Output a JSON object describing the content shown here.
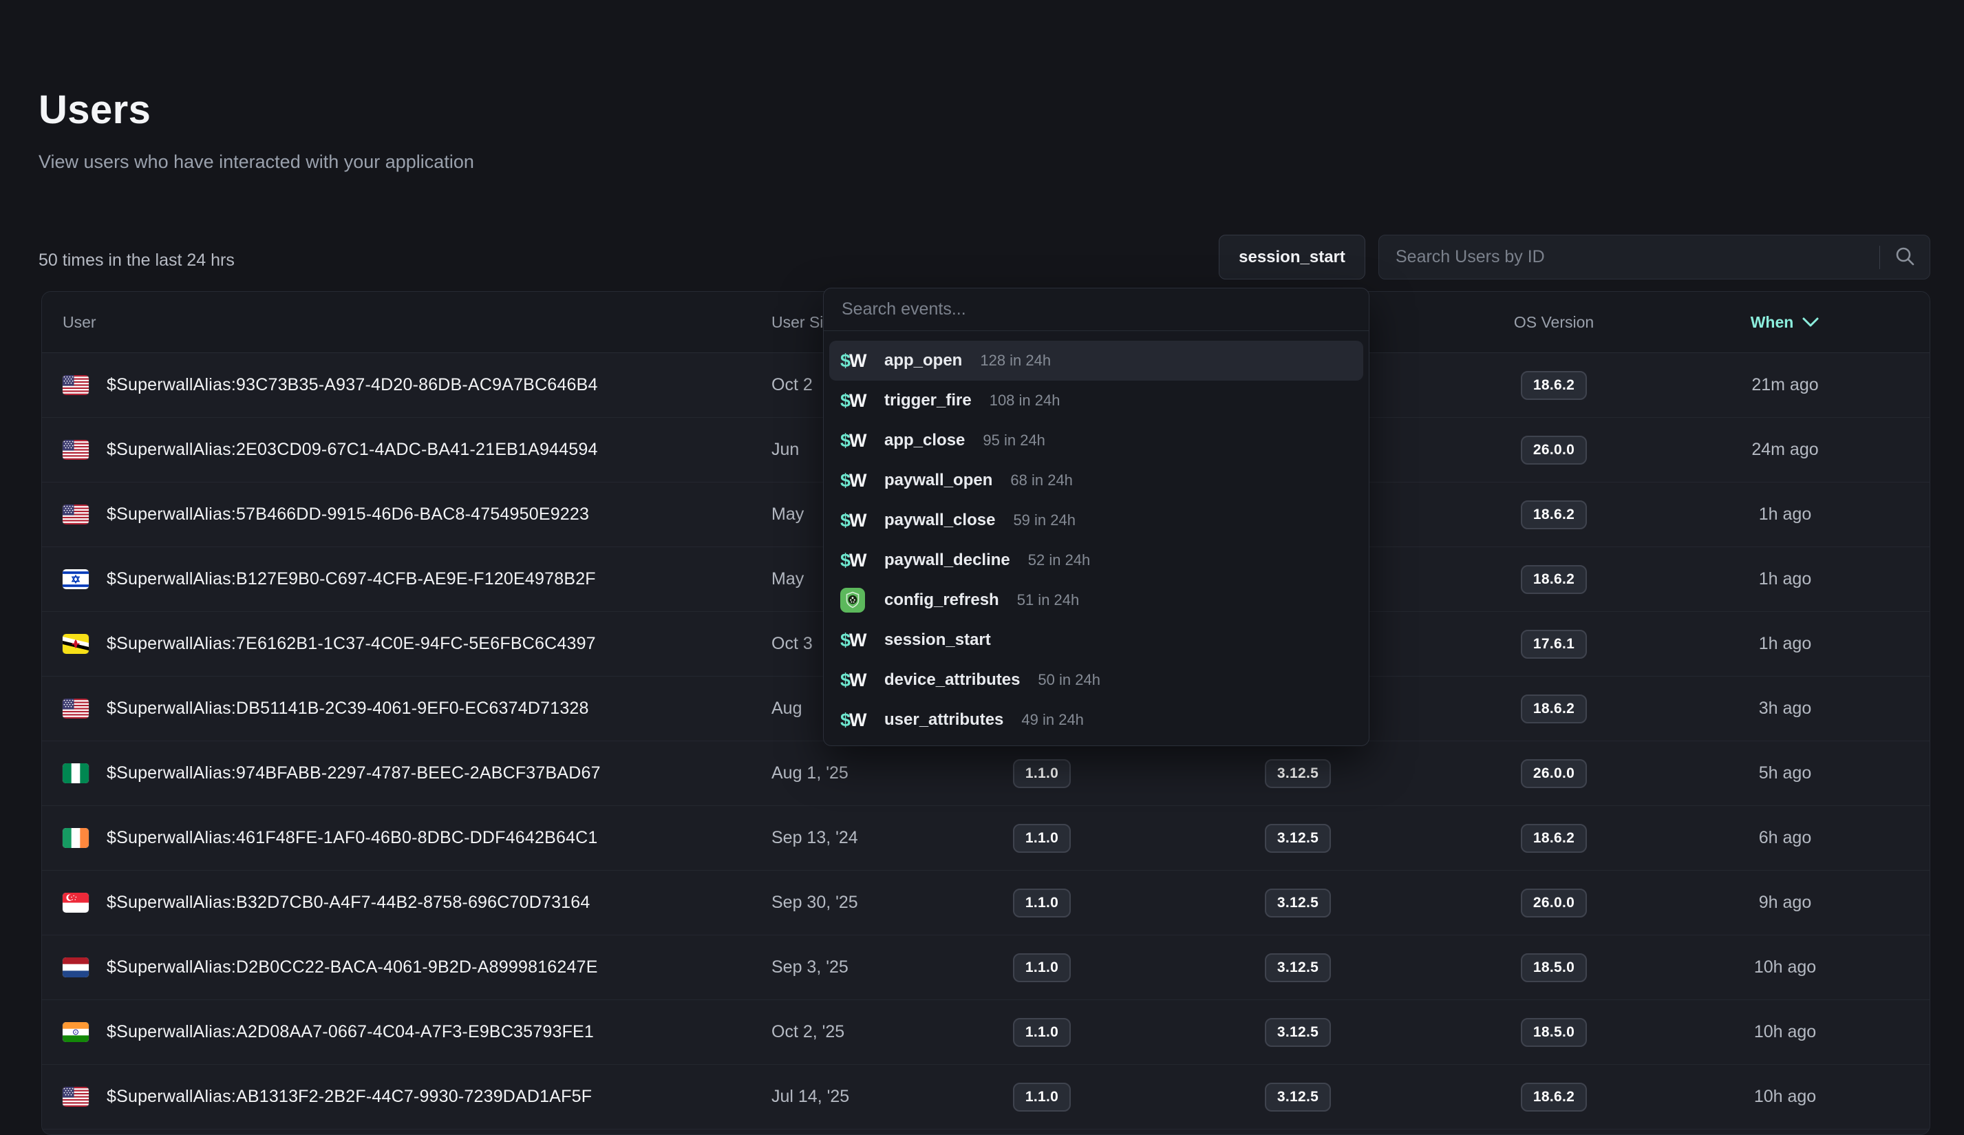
{
  "page": {
    "title": "Users",
    "subtitle": "View users who have interacted with your application",
    "stats_text": "50 times in the last 24 hrs"
  },
  "controls": {
    "event_filter_label": "session_start",
    "user_search_placeholder": "Search Users by ID"
  },
  "events_dropdown": {
    "search_placeholder": "Search events...",
    "items": [
      {
        "icon": "superwall",
        "label": "app_open",
        "count": "128 in 24h",
        "highlighted": true
      },
      {
        "icon": "superwall",
        "label": "trigger_fire",
        "count": "108 in 24h",
        "highlighted": false
      },
      {
        "icon": "superwall",
        "label": "app_close",
        "count": "95 in 24h",
        "highlighted": false
      },
      {
        "icon": "superwall",
        "label": "paywall_open",
        "count": "68 in 24h",
        "highlighted": false
      },
      {
        "icon": "superwall",
        "label": "paywall_close",
        "count": "59 in 24h",
        "highlighted": false
      },
      {
        "icon": "superwall",
        "label": "paywall_decline",
        "count": "52 in 24h",
        "highlighted": false
      },
      {
        "icon": "app",
        "label": "config_refresh",
        "count": "51 in 24h",
        "highlighted": false
      },
      {
        "icon": "superwall",
        "label": "session_start",
        "count": "",
        "highlighted": false
      },
      {
        "icon": "superwall",
        "label": "device_attributes",
        "count": "50 in 24h",
        "highlighted": false
      },
      {
        "icon": "superwall",
        "label": "user_attributes",
        "count": "49 in 24h",
        "highlighted": false
      }
    ]
  },
  "table": {
    "headers": [
      "User",
      "User Since",
      "",
      "",
      "OS Version",
      "When"
    ],
    "sorted_by": "When",
    "rows": [
      {
        "flag": "us",
        "alias": "$SuperwallAlias:93C73B35-A937-4D20-86DB-AC9A7BC646B4",
        "user_since": "Oct 2",
        "app_version": "",
        "sdk_version": "",
        "os_version": "18.6.2",
        "when": "21m ago"
      },
      {
        "flag": "us",
        "alias": "$SuperwallAlias:2E03CD09-67C1-4ADC-BA41-21EB1A944594",
        "user_since": "Jun",
        "app_version": "",
        "sdk_version": "",
        "os_version": "26.0.0",
        "when": "24m ago"
      },
      {
        "flag": "us",
        "alias": "$SuperwallAlias:57B466DD-9915-46D6-BAC8-4754950E9223",
        "user_since": "May",
        "app_version": "",
        "sdk_version": "",
        "os_version": "18.6.2",
        "when": "1h ago"
      },
      {
        "flag": "il",
        "alias": "$SuperwallAlias:B127E9B0-C697-4CFB-AE9E-F120E4978B2F",
        "user_since": "May",
        "app_version": "",
        "sdk_version": "",
        "os_version": "18.6.2",
        "when": "1h ago"
      },
      {
        "flag": "bn",
        "alias": "$SuperwallAlias:7E6162B1-1C37-4C0E-94FC-5E6FBC6C4397",
        "user_since": "Oct 3",
        "app_version": "",
        "sdk_version": "",
        "os_version": "17.6.1",
        "when": "1h ago"
      },
      {
        "flag": "us",
        "alias": "$SuperwallAlias:DB51141B-2C39-4061-9EF0-EC6374D71328",
        "user_since": "Aug",
        "app_version": "",
        "sdk_version": "",
        "os_version": "18.6.2",
        "when": "3h ago"
      },
      {
        "flag": "ng",
        "alias": "$SuperwallAlias:974BFABB-2297-4787-BEEC-2ABCF37BAD67",
        "user_since": "Aug 1, '25",
        "app_version": "1.1.0",
        "sdk_version": "3.12.5",
        "os_version": "26.0.0",
        "when": "5h ago"
      },
      {
        "flag": "ie",
        "alias": "$SuperwallAlias:461F48FE-1AF0-46B0-8DBC-DDF4642B64C1",
        "user_since": "Sep 13, '24",
        "app_version": "1.1.0",
        "sdk_version": "3.12.5",
        "os_version": "18.6.2",
        "when": "6h ago"
      },
      {
        "flag": "sg",
        "alias": "$SuperwallAlias:B32D7CB0-A4F7-44B2-8758-696C70D73164",
        "user_since": "Sep 30, '25",
        "app_version": "1.1.0",
        "sdk_version": "3.12.5",
        "os_version": "26.0.0",
        "when": "9h ago"
      },
      {
        "flag": "nl",
        "alias": "$SuperwallAlias:D2B0CC22-BACA-4061-9B2D-A8999816247E",
        "user_since": "Sep 3, '25",
        "app_version": "1.1.0",
        "sdk_version": "3.12.5",
        "os_version": "18.5.0",
        "when": "10h ago"
      },
      {
        "flag": "in",
        "alias": "$SuperwallAlias:A2D08AA7-0667-4C04-A7F3-E9BC35793FE1",
        "user_since": "Oct 2, '25",
        "app_version": "1.1.0",
        "sdk_version": "3.12.5",
        "os_version": "18.5.0",
        "when": "10h ago"
      },
      {
        "flag": "us",
        "alias": "$SuperwallAlias:AB1313F2-2B2F-44C7-9930-7239DAD1AF5F",
        "user_since": "Jul 14, '25",
        "app_version": "1.1.0",
        "sdk_version": "3.12.5",
        "os_version": "18.6.2",
        "when": "10h ago"
      }
    ]
  },
  "colors": {
    "accent_teal": "#8ceedd",
    "superwall_dollar": "#6ee7cf",
    "app_icon_green": "#5cb85c",
    "badge_background": "#282c35"
  }
}
